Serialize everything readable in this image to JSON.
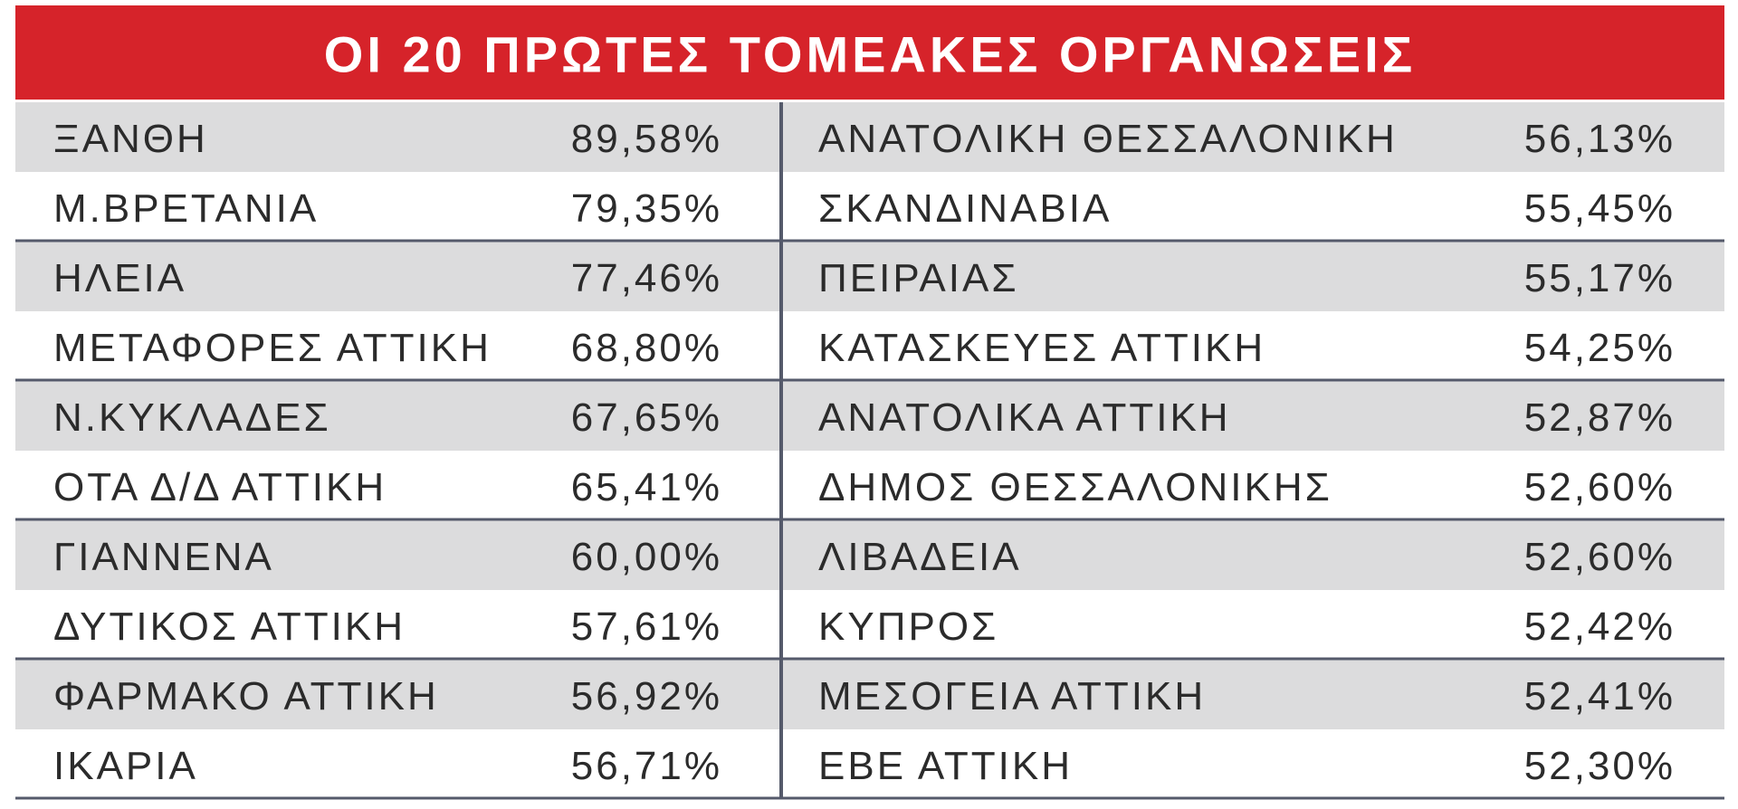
{
  "table": {
    "title": "ΟΙ 20 ΠΡΩΤΕΣ ΤΟΜΕΑΚΕΣ ΟΡΓΑΝΩΣΕΙΣ",
    "left": [
      [
        "ΞΑΝΘΗ",
        "89,58%"
      ],
      [
        "Μ.ΒΡΕΤΑΝΙΑ",
        "79,35%"
      ],
      [
        "ΗΛΕΙΑ",
        "77,46%"
      ],
      [
        "ΜΕΤΑΦΟΡΕΣ ΑΤΤΙΚΗ",
        "68,80%"
      ],
      [
        "Ν.ΚΥΚΛΑΔΕΣ",
        "67,65%"
      ],
      [
        "ΟΤΑ Δ/Δ ΑΤΤΙΚΗ",
        "65,41%"
      ],
      [
        "ΓΙΑΝΝΕΝΑ",
        "60,00%"
      ],
      [
        "ΔΥΤΙΚΟΣ ΑΤΤΙΚΗ",
        "57,61%"
      ],
      [
        "ΦΑΡΜΑΚΟ ΑΤΤΙΚΗ",
        "56,92%"
      ],
      [
        "ΙΚΑΡΙΑ",
        "56,71%"
      ]
    ],
    "right": [
      [
        "ΑΝΑΤΟΛΙΚΗ ΘΕΣΣΑΛΟΝΙΚΗ",
        "56,13%"
      ],
      [
        "ΣΚΑΝΔΙΝΑΒΙΑ",
        "55,45%"
      ],
      [
        "ΠΕΙΡΑΙΑΣ",
        "55,17%"
      ],
      [
        "ΚΑΤΑΣΚΕΥΕΣ ΑΤΤΙΚΗ",
        "54,25%"
      ],
      [
        "ΑΝΑΤΟΛΙΚΑ ΑΤΤΙΚΗ",
        "52,87%"
      ],
      [
        "ΔΗΜΟΣ ΘΕΣΣΑΛΟΝΙΚΗΣ",
        "52,60%"
      ],
      [
        "ΛΙΒΑΔΕΙΑ",
        "52,60%"
      ],
      [
        "ΚΥΠΡΟΣ",
        "52,42%"
      ],
      [
        "ΜΕΣΟΓΕΙΑ ΑΤΤΙΚΗ",
        "52,41%"
      ],
      [
        "ΕΒΕ ΑΤΤΙΚΗ",
        "52,30%"
      ]
    ]
  }
}
